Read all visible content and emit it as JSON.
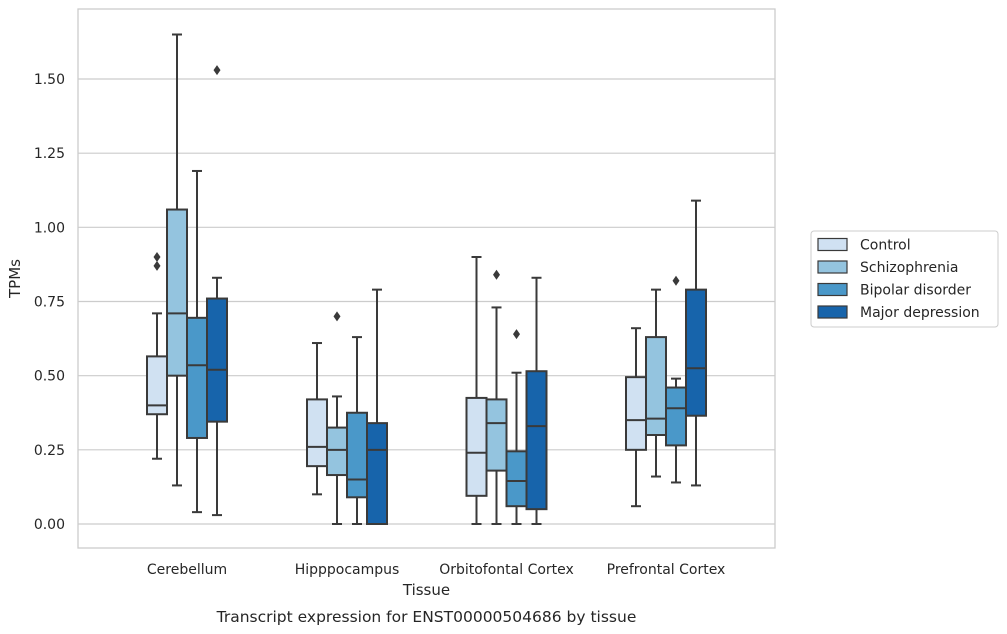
{
  "chart_data": {
    "type": "box",
    "xlabel": "Tissue",
    "ylabel": "TPMs",
    "caption": "Transcript expression for ENST00000504686 by tissue",
    "ylim": [
      -0.08,
      1.74
    ],
    "yticks": [
      "0.00",
      "0.25",
      "0.50",
      "0.75",
      "1.00",
      "1.25",
      "1.50"
    ],
    "grid": "horizontal",
    "legend_placement": "right",
    "categories": [
      "Cerebellum",
      "Hipppocampus",
      "Orbitofontal Cortex",
      "Prefrontal Cortex"
    ],
    "series": [
      {
        "name": "Control",
        "color": "#d0e1f2",
        "boxes": [
          {
            "whislo": 0.22,
            "q1": 0.37,
            "med": 0.4,
            "q3": 0.565,
            "whishi": 0.71,
            "fliers": [
              0.87,
              0.9
            ]
          },
          {
            "whislo": 0.1,
            "q1": 0.195,
            "med": 0.26,
            "q3": 0.42,
            "whishi": 0.61,
            "fliers": []
          },
          {
            "whislo": 0.0,
            "q1": 0.095,
            "med": 0.24,
            "q3": 0.425,
            "whishi": 0.9,
            "fliers": []
          },
          {
            "whislo": 0.06,
            "q1": 0.25,
            "med": 0.35,
            "q3": 0.495,
            "whishi": 0.66,
            "fliers": []
          }
        ]
      },
      {
        "name": "Schizophrenia",
        "color": "#94c4df",
        "boxes": [
          {
            "whislo": 0.13,
            "q1": 0.5,
            "med": 0.71,
            "q3": 1.06,
            "whishi": 1.65,
            "fliers": []
          },
          {
            "whislo": 0.0,
            "q1": 0.165,
            "med": 0.25,
            "q3": 0.325,
            "whishi": 0.43,
            "fliers": [
              0.7
            ]
          },
          {
            "whislo": 0.0,
            "q1": 0.18,
            "med": 0.34,
            "q3": 0.42,
            "whishi": 0.73,
            "fliers": [
              0.84
            ]
          },
          {
            "whislo": 0.16,
            "q1": 0.3,
            "med": 0.355,
            "q3": 0.63,
            "whishi": 0.79,
            "fliers": []
          }
        ]
      },
      {
        "name": "Bipolar disorder",
        "color": "#4a98c9",
        "boxes": [
          {
            "whislo": 0.04,
            "q1": 0.29,
            "med": 0.535,
            "q3": 0.695,
            "whishi": 1.19,
            "fliers": []
          },
          {
            "whislo": 0.0,
            "q1": 0.09,
            "med": 0.15,
            "q3": 0.375,
            "whishi": 0.63,
            "fliers": []
          },
          {
            "whislo": 0.0,
            "q1": 0.06,
            "med": 0.145,
            "q3": 0.245,
            "whishi": 0.51,
            "fliers": [
              0.64
            ]
          },
          {
            "whislo": 0.14,
            "q1": 0.265,
            "med": 0.39,
            "q3": 0.46,
            "whishi": 0.49,
            "fliers": [
              0.82
            ]
          }
        ]
      },
      {
        "name": "Major depression",
        "color": "#1764ab",
        "boxes": [
          {
            "whislo": 0.03,
            "q1": 0.345,
            "med": 0.52,
            "q3": 0.76,
            "whishi": 0.83,
            "fliers": [
              1.53
            ]
          },
          {
            "whislo": 0.0,
            "q1": 0.0,
            "med": 0.25,
            "q3": 0.34,
            "whishi": 0.79,
            "fliers": []
          },
          {
            "whislo": 0.0,
            "q1": 0.05,
            "med": 0.33,
            "q3": 0.515,
            "whishi": 0.83,
            "fliers": []
          },
          {
            "whislo": 0.13,
            "q1": 0.365,
            "med": 0.525,
            "q3": 0.79,
            "whishi": 1.09,
            "fliers": []
          }
        ]
      }
    ]
  }
}
